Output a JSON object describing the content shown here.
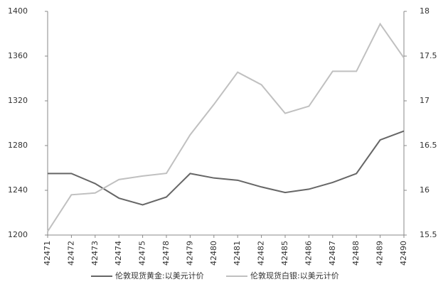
{
  "chart_data": {
    "type": "line",
    "categories": [
      "42471",
      "42472",
      "42473",
      "42474",
      "42475",
      "42478",
      "42479",
      "42480",
      "42481",
      "42482",
      "42485",
      "42486",
      "42487",
      "42488",
      "42489",
      "42490"
    ],
    "series": [
      {
        "name": "伦敦现货黄金:以美元计价",
        "color": "#666666",
        "axis": "y",
        "values": [
          1255,
          1255,
          1246,
          1233,
          1227,
          1234,
          1255,
          1251,
          1249,
          1243,
          1238,
          1241,
          1247,
          1255,
          1285,
          1293
        ]
      },
      {
        "name": "伦敦现货白银:以美元计价",
        "color": "#c0c0c0",
        "axis": "y2",
        "values": [
          15.54,
          15.95,
          15.97,
          16.12,
          16.16,
          16.19,
          16.62,
          16.96,
          17.32,
          17.18,
          16.86,
          16.94,
          17.33,
          17.33,
          17.86,
          17.48
        ]
      }
    ],
    "ylim": [
      1200,
      1400
    ],
    "yticks": [
      1200,
      1240,
      1280,
      1320,
      1360,
      1400
    ],
    "y2lim": [
      15.5,
      18
    ],
    "y2ticks": [
      15.5,
      16,
      16.5,
      17,
      17.5,
      18
    ],
    "grid": false,
    "legend": "bottom"
  }
}
